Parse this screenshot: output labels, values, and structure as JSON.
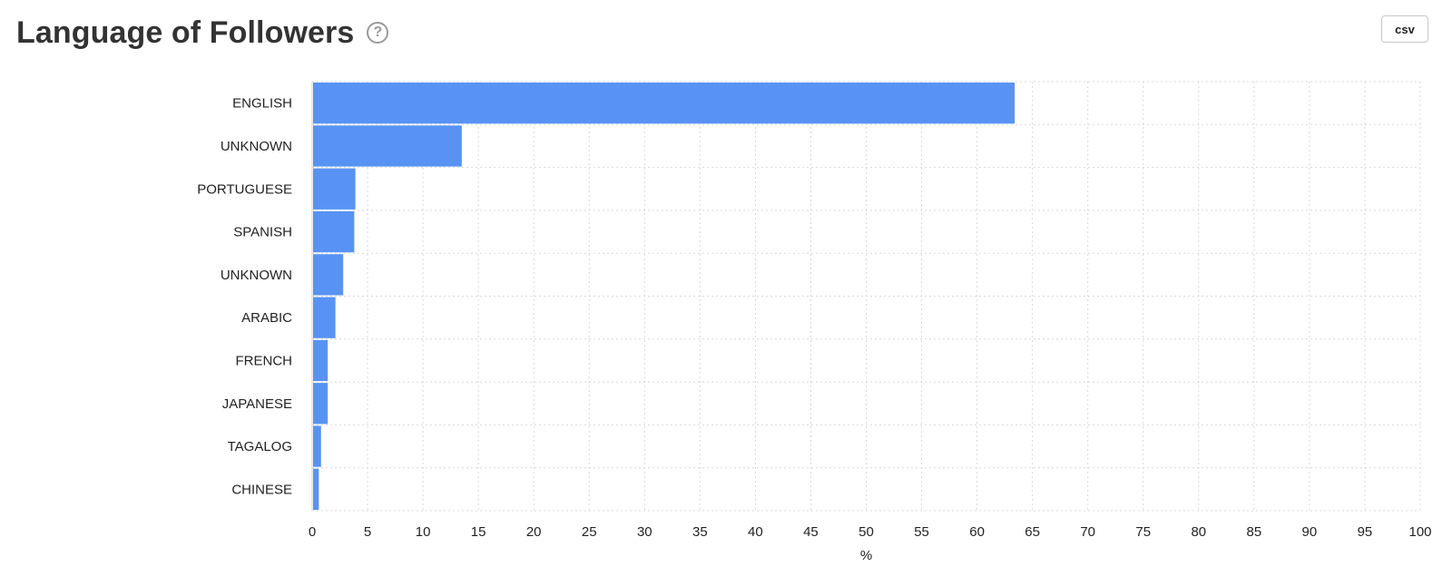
{
  "header": {
    "title": "Language of Followers",
    "help_icon": "question-circle-icon",
    "help_glyph": "?"
  },
  "toolbar": {
    "csv_label": "csv"
  },
  "colors": {
    "bar": "#5893f4",
    "grid": "#d9d9d9",
    "text": "#222222"
  },
  "chart_data": {
    "type": "bar",
    "orientation": "horizontal",
    "title": "",
    "xlabel": "%",
    "ylabel": "",
    "xlim": [
      0,
      100
    ],
    "xticks": [
      0,
      5,
      10,
      15,
      20,
      25,
      30,
      35,
      40,
      45,
      50,
      55,
      60,
      65,
      70,
      75,
      80,
      85,
      90,
      95,
      100
    ],
    "grid": true,
    "categories": [
      "ENGLISH",
      "UNKNOWN",
      "PORTUGUESE",
      "SPANISH",
      "UNKNOWN",
      "ARABIC",
      "FRENCH",
      "JAPANESE",
      "TAGALOG",
      "CHINESE"
    ],
    "values": [
      63.4,
      13.5,
      3.9,
      3.8,
      2.8,
      2.1,
      1.4,
      1.4,
      0.8,
      0.6
    ]
  }
}
